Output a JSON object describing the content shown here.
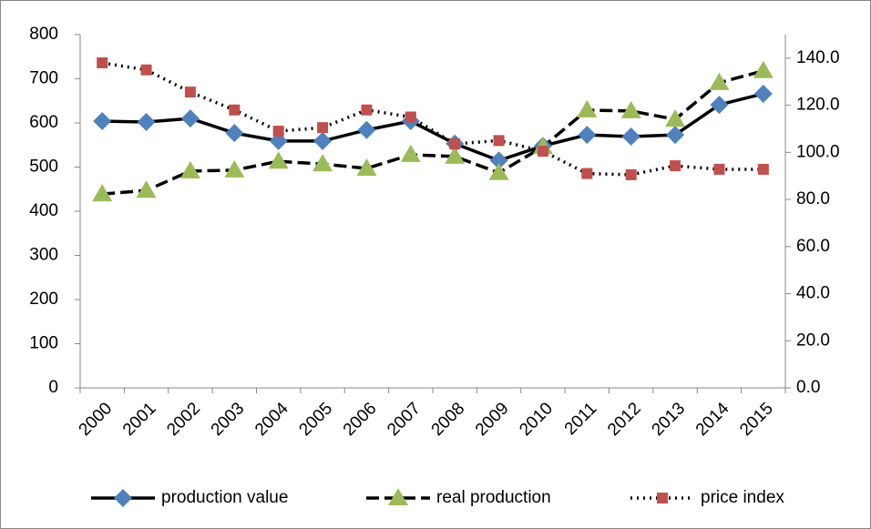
{
  "chart_data": {
    "type": "line",
    "categories": [
      "2000",
      "2001",
      "2002",
      "2003",
      "2004",
      "2005",
      "2006",
      "2007",
      "2008",
      "2009",
      "2010",
      "2011",
      "2012",
      "2013",
      "2014",
      "2015"
    ],
    "series": [
      {
        "name": "production value",
        "color": "#4f81bd",
        "marker": "diamond",
        "dash": "solid",
        "values": [
          604,
          602,
          610,
          577,
          559,
          559,
          584,
          604,
          553,
          515,
          548,
          573,
          569,
          573,
          641,
          666
        ]
      },
      {
        "name": "real production",
        "color": "#9bbb59",
        "marker": "triangle",
        "dash": "dashed",
        "values": [
          439,
          447,
          491,
          493,
          513,
          507,
          497,
          528,
          524,
          487,
          546,
          629,
          627,
          608,
          691,
          718
        ]
      },
      {
        "name": "price index",
        "color": "#c0504d",
        "marker": "square",
        "dash": "dotted",
        "axis": "y2",
        "values": [
          138,
          135,
          125.6,
          118,
          109,
          110.5,
          118,
          115,
          103.6,
          105,
          100.5,
          91,
          90.5,
          94.3,
          92.8,
          92.8
        ]
      }
    ],
    "ylim": [
      0,
      800
    ],
    "yticks": [
      0,
      100,
      200,
      300,
      400,
      500,
      600,
      700,
      800
    ],
    "y2lim": [
      0,
      150
    ],
    "y2ticks": [
      {
        "value": 0,
        "label": "0.0"
      },
      {
        "value": 20,
        "label": "20.0"
      },
      {
        "value": 40,
        "label": "40.0"
      },
      {
        "value": 60,
        "label": "60.0"
      },
      {
        "value": 80,
        "label": "80.0"
      },
      {
        "value": 100,
        "label": "100.0"
      },
      {
        "value": 120,
        "label": "120.0"
      },
      {
        "value": 140,
        "label": "140.0"
      }
    ],
    "legend": "bottom"
  }
}
